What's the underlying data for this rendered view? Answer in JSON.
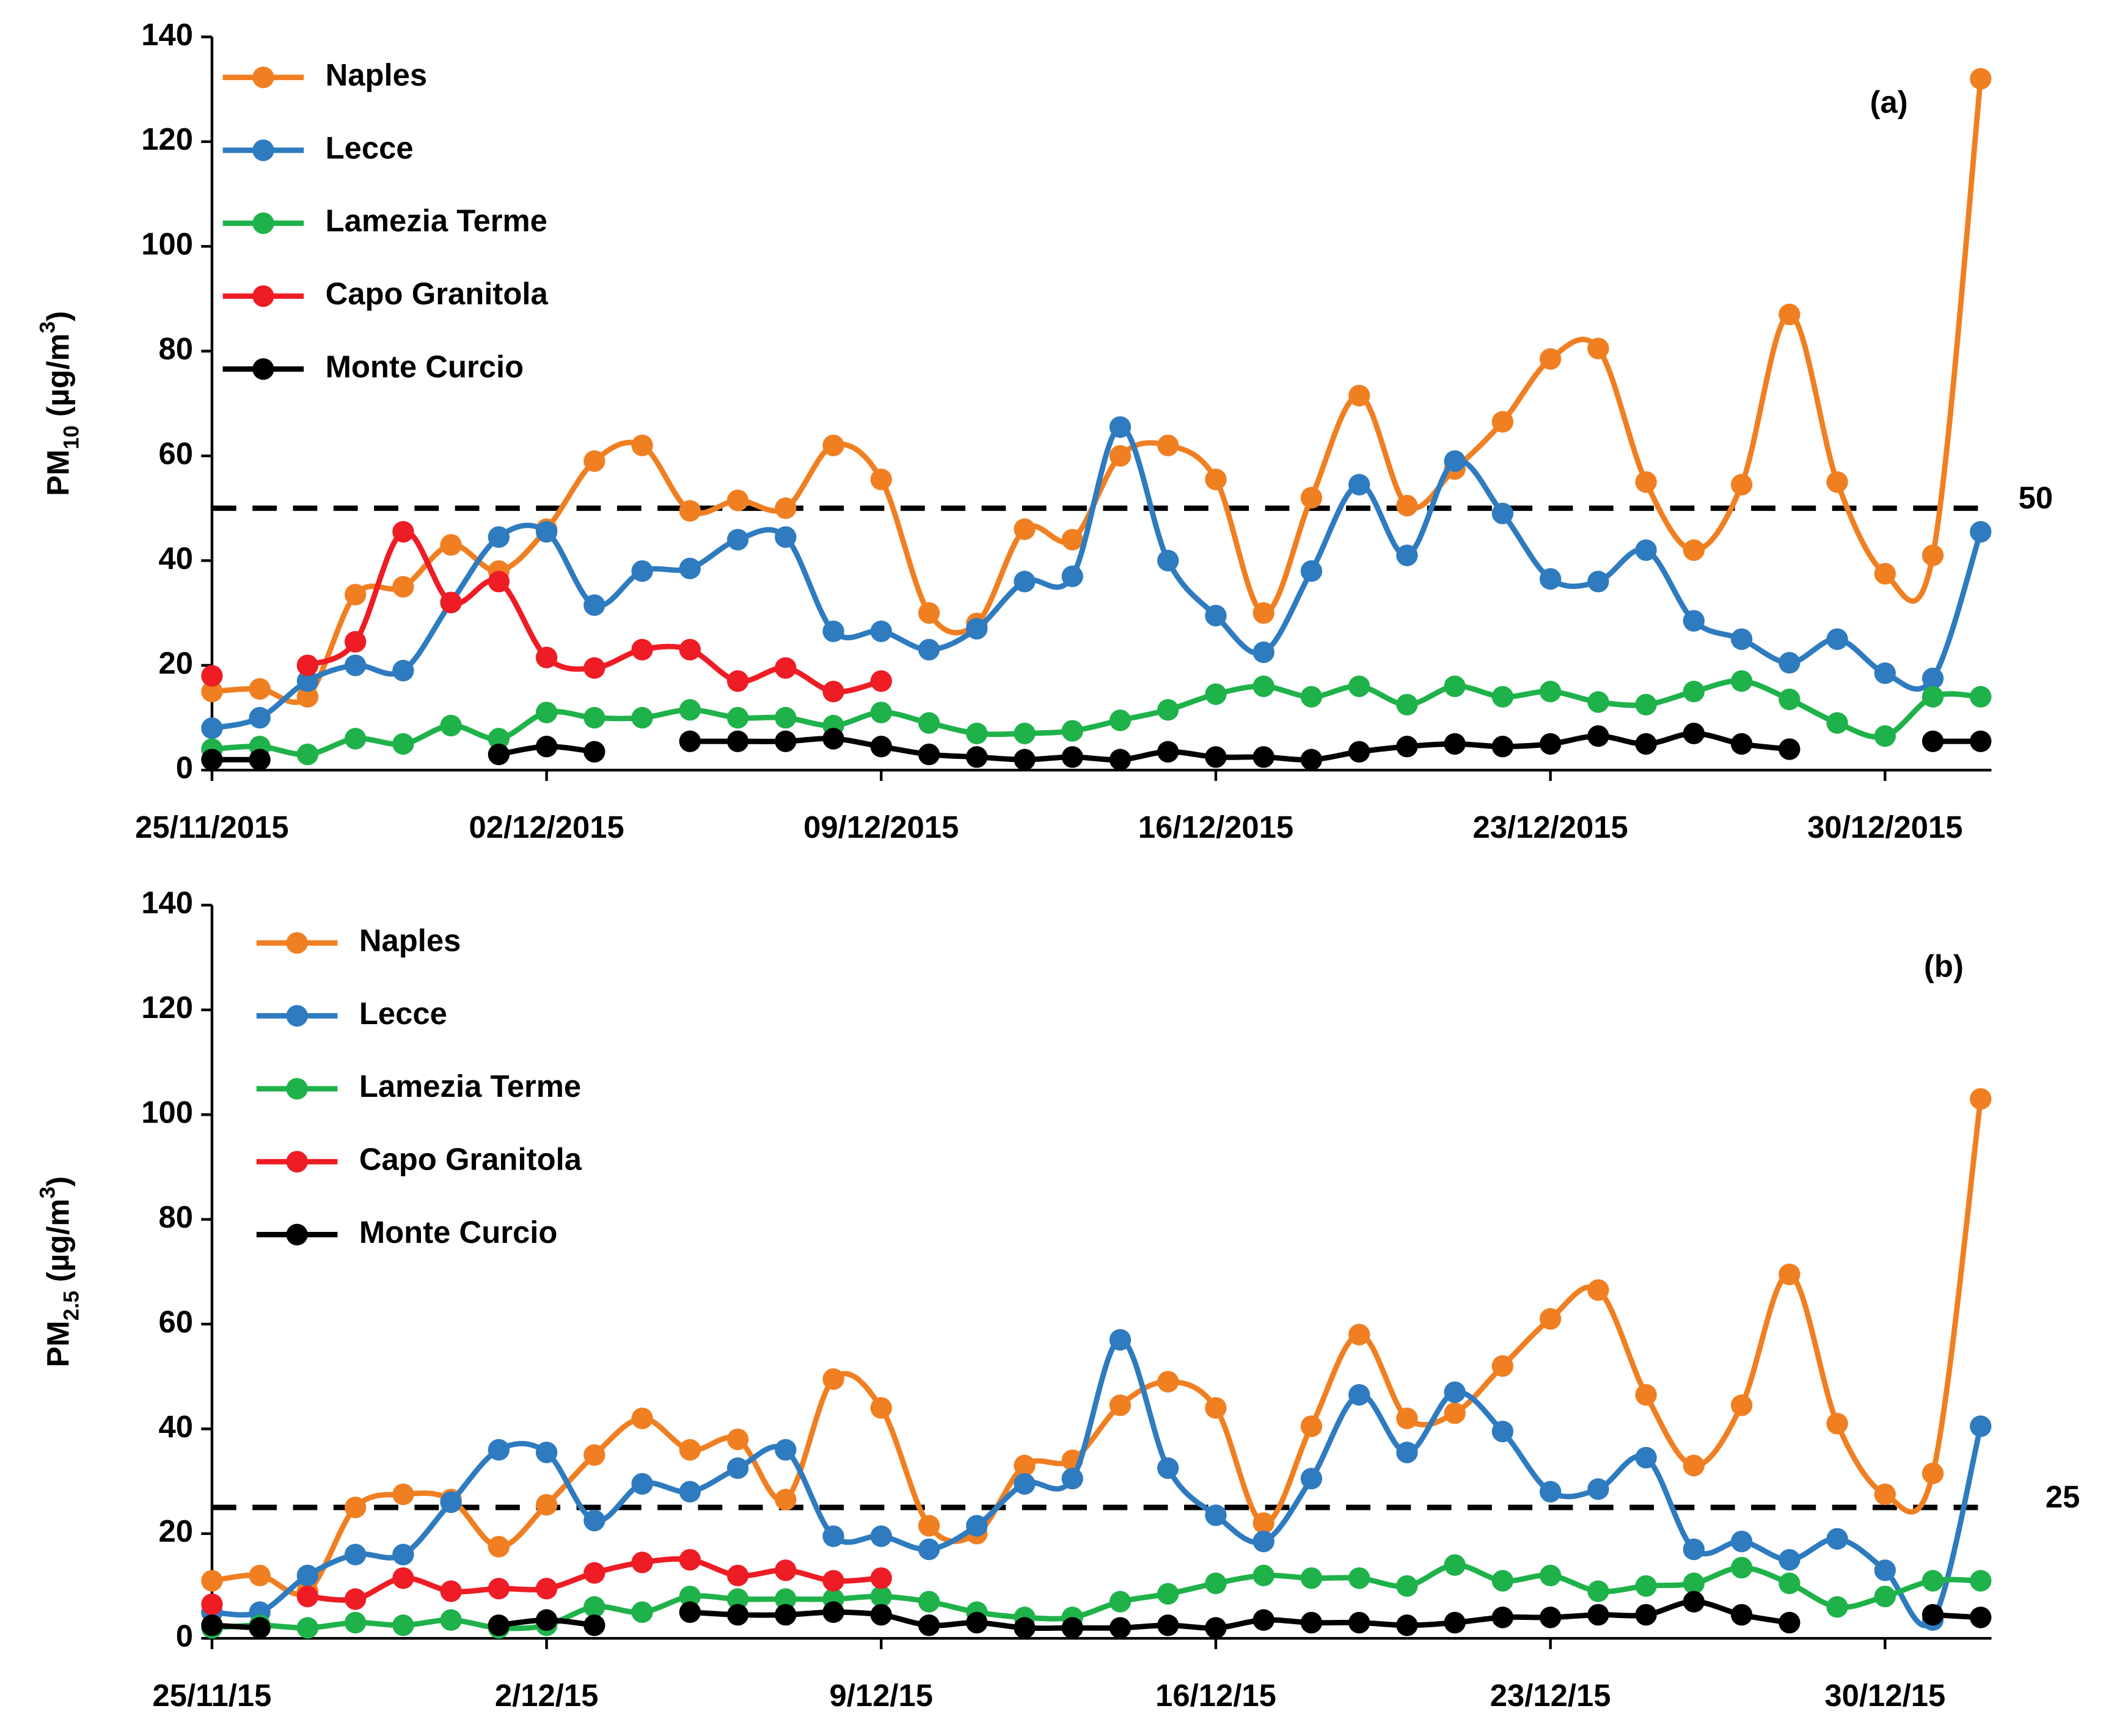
{
  "chart_data": [
    {
      "type": "line",
      "annotation": "(a)",
      "y_label": [
        "PM",
        "10",
        " (µg/m",
        "3",
        ")"
      ],
      "categories": [
        "25/11/2015",
        null,
        null,
        null,
        null,
        null,
        null,
        "02/12/2015",
        null,
        null,
        null,
        null,
        null,
        null,
        "09/12/2015",
        null,
        null,
        null,
        null,
        null,
        null,
        "16/12/2015",
        null,
        null,
        null,
        null,
        null,
        null,
        "23/12/2015",
        null,
        null,
        null,
        null,
        null,
        null,
        "30/12/2015",
        null,
        null
      ],
      "ylim": [
        0,
        140
      ],
      "yticks": [
        0,
        20,
        40,
        60,
        80,
        100,
        120,
        140
      ],
      "reference_line": 50,
      "series": [
        {
          "name": "Naples",
          "color": "#f07f22",
          "values": [
            15,
            15.5,
            14,
            33.5,
            35,
            43,
            38,
            46,
            59,
            62,
            49.5,
            51.5,
            50,
            62,
            55.5,
            30,
            28,
            46,
            44,
            60,
            62,
            55.5,
            30,
            52,
            71.5,
            50.5,
            57.5,
            66.5,
            78.5,
            80.5,
            55,
            42,
            54.5,
            87,
            55,
            37.5,
            41,
            132
          ]
        },
        {
          "name": "Lecce",
          "color": "#2e7bbf",
          "values": [
            8,
            10,
            17,
            20,
            19,
            32,
            44.5,
            45.5,
            31.5,
            38,
            38.5,
            44,
            44.5,
            26.5,
            26.5,
            23,
            27,
            36,
            37,
            65.5,
            40,
            29.5,
            22.5,
            38,
            54.5,
            41,
            59,
            49,
            36.5,
            36,
            42,
            28.5,
            25,
            20.5,
            25,
            18.5,
            17.5,
            45.5
          ]
        },
        {
          "name": "Lamezia Terme",
          "color": "#1fb24a",
          "values": [
            4,
            4.5,
            3,
            6,
            5,
            8.5,
            6,
            11,
            10,
            10,
            11.5,
            10,
            10,
            8.5,
            11,
            9,
            7,
            7,
            7.5,
            9.5,
            11.5,
            14.5,
            16,
            14,
            16,
            12.5,
            16,
            14,
            15,
            13,
            12.5,
            15,
            17,
            13.5,
            9,
            6.5,
            14,
            14
          ]
        },
        {
          "name": "Capo Granitola",
          "color": "#ee1c25",
          "values": [
            18,
            null,
            20,
            24.5,
            45.5,
            32,
            36,
            21.5,
            19.5,
            23,
            23,
            17,
            19.5,
            15,
            17,
            null,
            null,
            null,
            null,
            null,
            null,
            null,
            null,
            null,
            null,
            null,
            null,
            null,
            null,
            null,
            null,
            null,
            null,
            null,
            null,
            null,
            null,
            null
          ]
        },
        {
          "name": "Monte Curcio",
          "color": "#000000",
          "values": [
            2,
            2,
            null,
            null,
            null,
            null,
            3,
            4.5,
            3.5,
            null,
            5.5,
            5.5,
            5.5,
            6,
            4.5,
            3,
            2.5,
            2,
            2.5,
            2,
            3.5,
            2.5,
            2.5,
            2,
            3.5,
            4.5,
            5,
            4.5,
            5,
            6.5,
            5,
            7,
            5,
            4,
            null,
            null,
            5.5,
            5.5
          ]
        }
      ]
    },
    {
      "type": "line",
      "annotation": "(b)",
      "y_label": [
        "PM",
        "2.5",
        " (µg/m",
        "3",
        ")"
      ],
      "categories": [
        "25/11/15",
        null,
        null,
        null,
        null,
        null,
        null,
        "2/12/15",
        null,
        null,
        null,
        null,
        null,
        null,
        "9/12/15",
        null,
        null,
        null,
        null,
        null,
        null,
        "16/12/15",
        null,
        null,
        null,
        null,
        null,
        null,
        "23/12/15",
        null,
        null,
        null,
        null,
        null,
        null,
        "30/12/15",
        null,
        null
      ],
      "ylim": [
        0,
        140
      ],
      "yticks": [
        0,
        20,
        40,
        60,
        80,
        100,
        120,
        140
      ],
      "reference_line": 25,
      "series": [
        {
          "name": "Naples",
          "color": "#f07f22",
          "values": [
            11,
            12,
            9,
            25,
            27.5,
            26.5,
            17.5,
            25.5,
            35,
            42,
            36,
            38,
            26.5,
            49.5,
            44,
            21.5,
            20,
            33,
            34,
            44.5,
            49,
            44,
            22,
            40.5,
            58,
            42,
            43,
            52,
            61,
            66.5,
            46.5,
            33,
            44.5,
            69.5,
            41,
            27.5,
            31.5,
            103
          ]
        },
        {
          "name": "Lecce",
          "color": "#2e7bbf",
          "values": [
            5,
            5,
            12,
            16,
            16,
            26,
            36,
            35.5,
            22.5,
            29.5,
            28,
            32.5,
            36,
            19.5,
            19.5,
            17,
            21.5,
            29.5,
            30.5,
            57,
            32.5,
            23.5,
            18.5,
            30.5,
            46.5,
            35.5,
            47,
            39.5,
            28,
            28.5,
            34.5,
            17,
            18.5,
            15,
            19,
            13,
            3.5,
            40.5
          ]
        },
        {
          "name": "Lamezia Terme",
          "color": "#1fb24a",
          "values": [
            2,
            2.5,
            2,
            3,
            2.5,
            3.5,
            2,
            2.5,
            6,
            5,
            8,
            7.5,
            7.5,
            7.5,
            8,
            7,
            5,
            4,
            4,
            7,
            8.5,
            10.5,
            12,
            11.5,
            11.5,
            10,
            14,
            11,
            12,
            9,
            10,
            10.5,
            13.5,
            10.5,
            6,
            8,
            11,
            11
          ]
        },
        {
          "name": "Capo Granitola",
          "color": "#ee1c25",
          "values": [
            6.5,
            null,
            8,
            7.5,
            11.5,
            9,
            9.5,
            9.5,
            12.5,
            14.5,
            15,
            12,
            13,
            11,
            11.5,
            null,
            null,
            null,
            null,
            null,
            null,
            null,
            null,
            null,
            null,
            null,
            null,
            null,
            null,
            null,
            null,
            null,
            null,
            null,
            null,
            null,
            null,
            null
          ]
        },
        {
          "name": "Monte Curcio",
          "color": "#000000",
          "values": [
            2.5,
            2,
            null,
            null,
            null,
            null,
            2.5,
            3.5,
            2.5,
            null,
            5,
            4.5,
            4.5,
            5,
            4.5,
            2.5,
            3,
            2,
            2,
            2,
            2.5,
            2,
            3.5,
            3,
            3,
            2.5,
            3,
            4,
            4,
            4.5,
            4.5,
            7,
            4.5,
            3,
            null,
            null,
            4.5,
            4
          ]
        }
      ]
    }
  ]
}
